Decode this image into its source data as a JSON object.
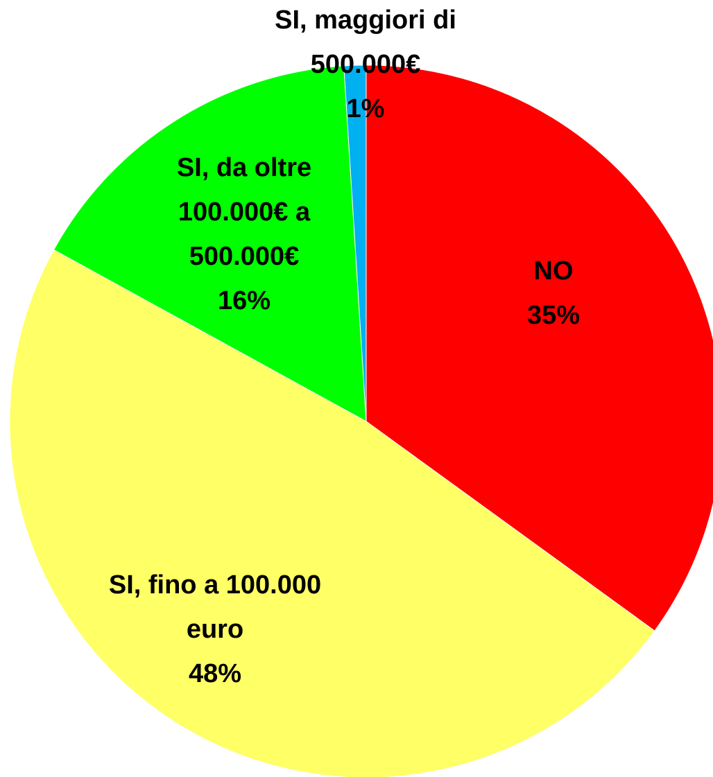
{
  "chart_data": {
    "type": "pie",
    "categories": [
      "NO",
      "SI, fino a 100.000 euro",
      "SI, da oltre 100.000€ a 500.000€",
      "SI, maggiori di 500.000€"
    ],
    "values": [
      35,
      48,
      16,
      1
    ],
    "value_labels": [
      "35%",
      "48%",
      "16%",
      "1%"
    ],
    "colors": [
      "#ff0000",
      "#ffff66",
      "#00ff00",
      "#00b0f0"
    ]
  }
}
